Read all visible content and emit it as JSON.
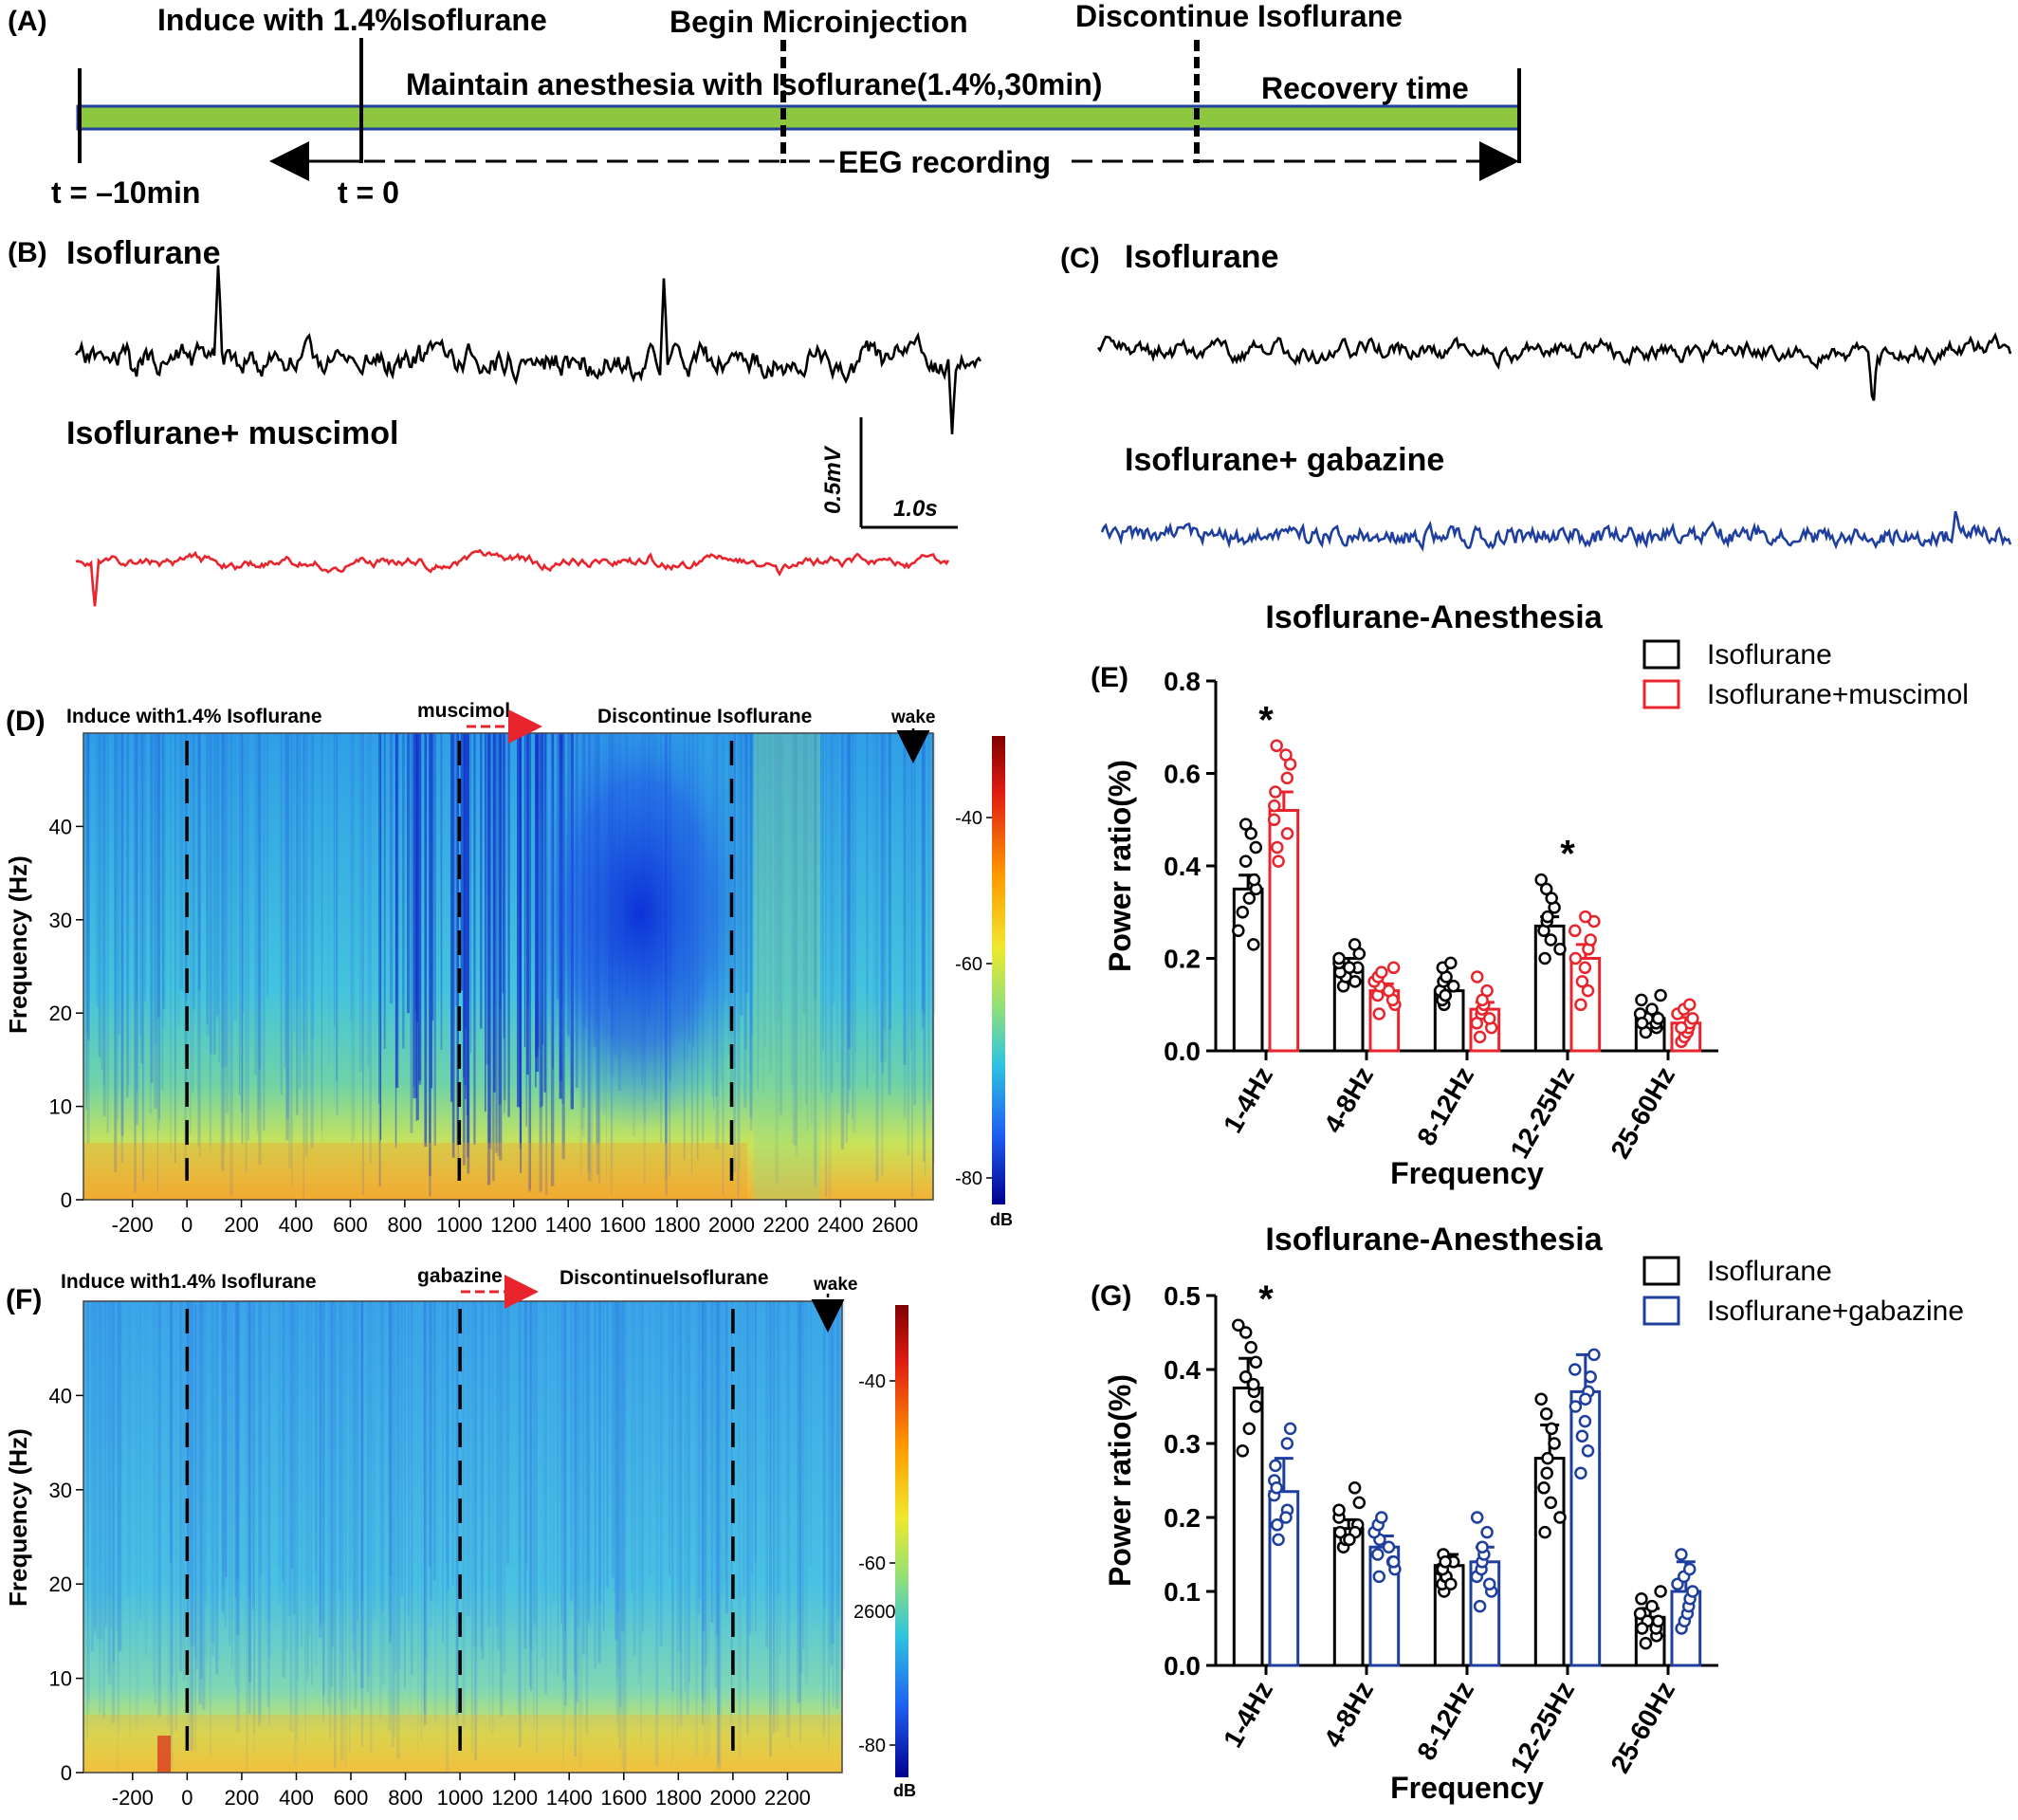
{
  "panel_letters": {
    "a": "(A)",
    "b": "(B)",
    "c": "(C)",
    "d": "(D)",
    "e": "(E)",
    "f": "(F)",
    "g": "(G)"
  },
  "timeline": {
    "induce_label": "Induce with 1.4%Isoflurane",
    "begin_label": "Begin Microinjection",
    "discontinue_label": "Discontinue Isoflurane",
    "maintain_label": "Maintain anesthesia with  Isoflurane(1.4%,30min)",
    "recovery_label": "Recovery time",
    "eeg_label": "EEG recording",
    "t_start": "t = –10min",
    "t_zero": "t = 0",
    "bar_color": "#8dc63f"
  },
  "traces": {
    "b_top_label": "Isoflurane",
    "b_bottom_label": "Isoflurane+ muscimol",
    "c_top_label": "Isoflurane",
    "c_bottom_label": "Isoflurane+ gabazine",
    "scale_v": "0.5mV",
    "scale_h": "1.0s",
    "colors": {
      "isoflurane": "#000000",
      "muscimol": "#e8242c",
      "gabazine": "#1f3f9e"
    }
  },
  "spectrogram_d": {
    "annot_induce": "Induce with1.4% Isoflurane",
    "annot_drug": "muscimol",
    "annot_discontinue": "Discontinue  Isoflurane",
    "annot_wake": "wake",
    "ylabel": "Frequency  (Hz)",
    "yticks": [
      "0",
      "10",
      "20",
      "30",
      "40"
    ],
    "xticks": [
      "-200",
      "0",
      "200",
      "400",
      "600",
      "800",
      "1000",
      "1200",
      "1400",
      "1600",
      "1800",
      "2000",
      "2200",
      "2400",
      "2600"
    ],
    "cbar_ticks": [
      "-40",
      "-60",
      "-80"
    ],
    "cbar_unit": "dB"
  },
  "spectrogram_f": {
    "annot_induce": "Induce with1.4% Isoflurane",
    "annot_drug": "gabazine",
    "annot_discontinue": "DiscontinueIsoflurane",
    "annot_wake": "wake",
    "ylabel": "Frequency  (Hz)",
    "yticks": [
      "0",
      "10",
      "20",
      "30",
      "40"
    ],
    "xticks": [
      "-200",
      "0",
      "200",
      "400",
      "600",
      "800",
      "1000",
      "1200",
      "1400",
      "1600",
      "1800",
      "2000",
      "2200"
    ],
    "cbar_ticks": [
      "-40",
      "-60",
      "-80"
    ],
    "cbar_stray": "2600",
    "cbar_unit": "dB"
  },
  "chart_data": [
    {
      "type": "bar",
      "panel": "E",
      "title": "Isoflurane-Anesthesia",
      "xlabel": "Frequency",
      "ylabel": "Power ratio(%)",
      "ylim": [
        0,
        0.8
      ],
      "yticks": [
        "0.0",
        "0.2",
        "0.4",
        "0.6",
        "0.8"
      ],
      "categories": [
        "1-4Hz",
        "4-8Hz",
        "8-12Hz",
        "12-25Hz",
        "25-60Hz"
      ],
      "series": [
        {
          "name": "Isoflurane",
          "color": "#000000",
          "values": [
            0.35,
            0.18,
            0.13,
            0.27,
            0.07
          ],
          "errors": [
            0.03,
            0.02,
            0.015,
            0.02,
            0.012
          ],
          "points": [
            [
              0.3,
              0.33,
              0.35,
              0.37,
              0.41,
              0.44,
              0.47,
              0.49,
              0.26,
              0.23
            ],
            [
              0.14,
              0.16,
              0.17,
              0.18,
              0.19,
              0.2,
              0.21,
              0.23,
              0.15,
              0.18
            ],
            [
              0.1,
              0.11,
              0.12,
              0.13,
              0.14,
              0.15,
              0.16,
              0.18,
              0.19,
              0.12
            ],
            [
              0.2,
              0.22,
              0.24,
              0.26,
              0.28,
              0.29,
              0.31,
              0.33,
              0.35,
              0.37
            ],
            [
              0.04,
              0.05,
              0.06,
              0.07,
              0.08,
              0.09,
              0.11,
              0.12,
              0.06,
              0.07
            ]
          ]
        },
        {
          "name": "Isoflurane+muscimol",
          "color": "#e8242c",
          "values": [
            0.52,
            0.13,
            0.09,
            0.2,
            0.06
          ],
          "errors": [
            0.04,
            0.015,
            0.015,
            0.03,
            0.012
          ],
          "points": [
            [
              0.41,
              0.44,
              0.47,
              0.5,
              0.53,
              0.56,
              0.59,
              0.62,
              0.64,
              0.66
            ],
            [
              0.08,
              0.1,
              0.11,
              0.12,
              0.13,
              0.14,
              0.15,
              0.16,
              0.17,
              0.18
            ],
            [
              0.03,
              0.05,
              0.06,
              0.08,
              0.09,
              0.1,
              0.11,
              0.13,
              0.16,
              0.07
            ],
            [
              0.1,
              0.13,
              0.15,
              0.18,
              0.2,
              0.22,
              0.24,
              0.26,
              0.28,
              0.29
            ],
            [
              0.02,
              0.03,
              0.04,
              0.05,
              0.06,
              0.07,
              0.08,
              0.09,
              0.1,
              0.05
            ]
          ]
        }
      ],
      "significance": [
        "*",
        "",
        "",
        "*",
        ""
      ],
      "legend": "top-right"
    },
    {
      "type": "bar",
      "panel": "G",
      "title": "Isoflurane-Anesthesia",
      "xlabel": "Frequency",
      "ylabel": "Power ratio(%)",
      "ylim": [
        0,
        0.5
      ],
      "yticks": [
        "0.0",
        "0.1",
        "0.2",
        "0.3",
        "0.4",
        "0.5"
      ],
      "categories": [
        "1-4Hz",
        "4-8Hz",
        "8-12Hz",
        "12-25Hz",
        "25-60Hz"
      ],
      "series": [
        {
          "name": "Isoflurane",
          "color": "#000000",
          "values": [
            0.375,
            0.185,
            0.135,
            0.28,
            0.065
          ],
          "errors": [
            0.04,
            0.012,
            0.015,
            0.045,
            0.012
          ],
          "points": [
            [
              0.29,
              0.32,
              0.35,
              0.37,
              0.39,
              0.41,
              0.43,
              0.45,
              0.46,
              0.38
            ],
            [
              0.16,
              0.17,
              0.18,
              0.19,
              0.2,
              0.21,
              0.22,
              0.24,
              0.18,
              0.17
            ],
            [
              0.1,
              0.11,
              0.12,
              0.13,
              0.14,
              0.15,
              0.12,
              0.13,
              0.11,
              0.14
            ],
            [
              0.18,
              0.2,
              0.22,
              0.24,
              0.26,
              0.28,
              0.3,
              0.32,
              0.34,
              0.36
            ],
            [
              0.03,
              0.04,
              0.05,
              0.06,
              0.07,
              0.08,
              0.09,
              0.1,
              0.05,
              0.06
            ]
          ]
        },
        {
          "name": "Isoflurane+gabazine",
          "color": "#1f3f9e",
          "values": [
            0.235,
            0.16,
            0.14,
            0.37,
            0.1
          ],
          "errors": [
            0.045,
            0.015,
            0.02,
            0.05,
            0.04
          ],
          "points": [
            [
              0.17,
              0.19,
              0.21,
              0.23,
              0.25,
              0.27,
              0.3,
              0.32,
              0.2,
              0.24
            ],
            [
              0.12,
              0.13,
              0.14,
              0.15,
              0.16,
              0.17,
              0.18,
              0.19,
              0.2,
              0.14
            ],
            [
              0.08,
              0.1,
              0.12,
              0.13,
              0.14,
              0.15,
              0.16,
              0.18,
              0.2,
              0.11
            ],
            [
              0.26,
              0.29,
              0.31,
              0.33,
              0.35,
              0.37,
              0.39,
              0.4,
              0.42,
              0.36
            ],
            [
              0.05,
              0.06,
              0.07,
              0.08,
              0.09,
              0.1,
              0.11,
              0.12,
              0.13,
              0.15
            ]
          ]
        }
      ],
      "significance": [
        "*",
        "",
        "",
        "",
        ""
      ],
      "legend": "top-right"
    }
  ]
}
